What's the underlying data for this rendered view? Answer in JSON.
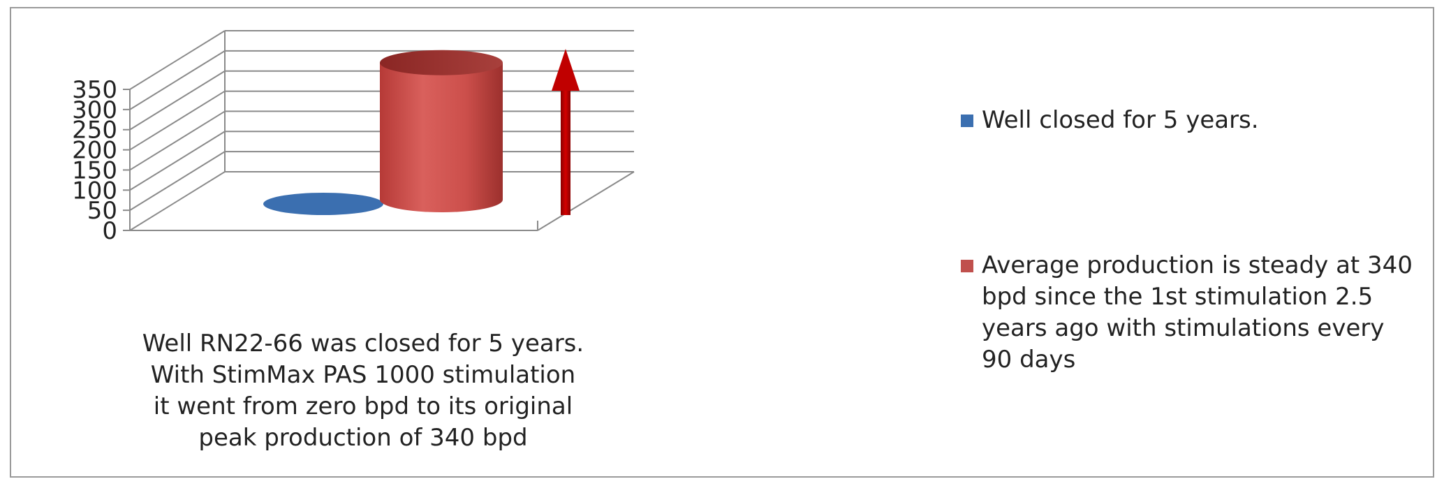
{
  "chart_data": {
    "type": "bar",
    "style": "3d-cylinder",
    "categories": [
      "Well RN22-66 was closed for 5 years. With StimMax PAS 1000 stimulation it went from zero bpd to its original peak production of 340 bpd"
    ],
    "series": [
      {
        "name": "Well closed for 5 years.",
        "values": [
          0
        ],
        "color": "#3b6fb0"
      },
      {
        "name": "Average production is steady at 340 bpd since the 1st stimulation 2.5 years ago with stimulations every 90 days",
        "values": [
          340
        ],
        "color": "#c0504d"
      }
    ],
    "yticks": [
      0,
      50,
      100,
      150,
      200,
      250,
      300,
      350
    ],
    "ylim": [
      0,
      350
    ],
    "grid": true,
    "legend_position": "right",
    "annotation": {
      "type": "arrow",
      "direction": "up",
      "color": "#c00000"
    },
    "title": "",
    "xlabel": "",
    "ylabel": ""
  }
}
